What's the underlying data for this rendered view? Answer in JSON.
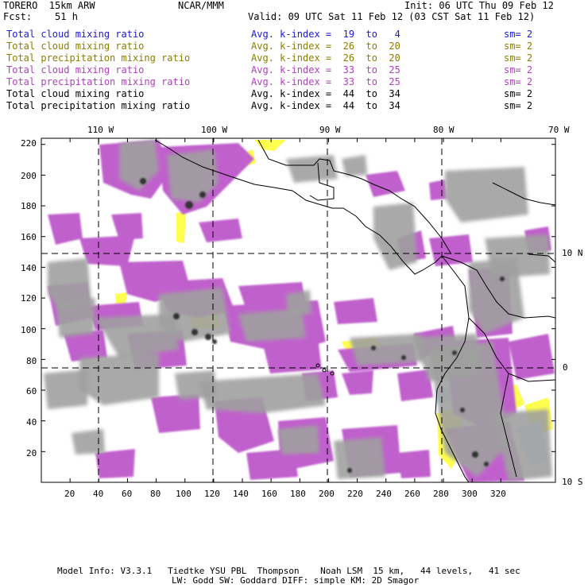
{
  "header": {
    "model": "TORERO  15km ARW",
    "center": "NCAR/MMM",
    "init": "Init: 06 UTC Thu 09 Feb 12",
    "fcst": "Fcst:    51 h",
    "valid": "Valid: 09 UTC Sat 11 Feb 12 (03 CST Sat 11 Feb 12)"
  },
  "legend": [
    {
      "field": "Total cloud mixing ratio",
      "kindex": "Avg. k-index =  19  to   4",
      "sm": "sm= 2",
      "color": "#1a1ad0"
    },
    {
      "field": "Total cloud mixing ratio",
      "kindex": "Avg. k-index =  26  to  20",
      "sm": "sm= 2",
      "color": "#8a7d00"
    },
    {
      "field": "Total precipitation mixing ratio",
      "kindex": "Avg. k-index =  26  to  20",
      "sm": "sm= 2",
      "color": "#8a7d00"
    },
    {
      "field": "Total cloud mixing ratio",
      "kindex": "Avg. k-index =  33  to  25",
      "sm": "sm= 2",
      "color": "#b040c0"
    },
    {
      "field": "Total precipitation mixing ratio",
      "kindex": "Avg. k-index =  33  to  25",
      "sm": "sm= 2",
      "color": "#b040c0"
    },
    {
      "field": "Total cloud mixing ratio",
      "kindex": "Avg. k-index =  44  to  34",
      "sm": "sm= 2",
      "color": "#000000"
    },
    {
      "field": "Total precipitation mixing ratio",
      "kindex": "Avg. k-index =  44  to  34",
      "sm": "sm= 2",
      "color": "#000000"
    }
  ],
  "map": {
    "lon_labels": [
      "110 W",
      "100 W",
      "90 W",
      "80 W",
      "70 W"
    ],
    "lat_labels": [
      "10 N",
      "0",
      "10 S"
    ],
    "y_ticks": [
      "220",
      "200",
      "180",
      "160",
      "140",
      "120",
      "100",
      "80",
      "60",
      "40",
      "20"
    ],
    "x_ticks": [
      "20",
      "40",
      "60",
      "80",
      "100",
      "120",
      "140",
      "160",
      "180",
      "200",
      "220",
      "240",
      "260",
      "280",
      "300",
      "320"
    ],
    "colors": {
      "moderate": "#c060cc",
      "light": "#ffff50",
      "heavy_gray": "#a0a0a0",
      "dark": "#303030",
      "trace": "#c8f0ff"
    }
  },
  "footer": {
    "line1": "Model Info: V3.3.1   Tiedtke YSU PBL  Thompson    Noah LSM  15 km,   44 levels,   41 sec",
    "line2": "LW: Godd SW: Goddard DIFF: simple KM: 2D Smagor"
  }
}
